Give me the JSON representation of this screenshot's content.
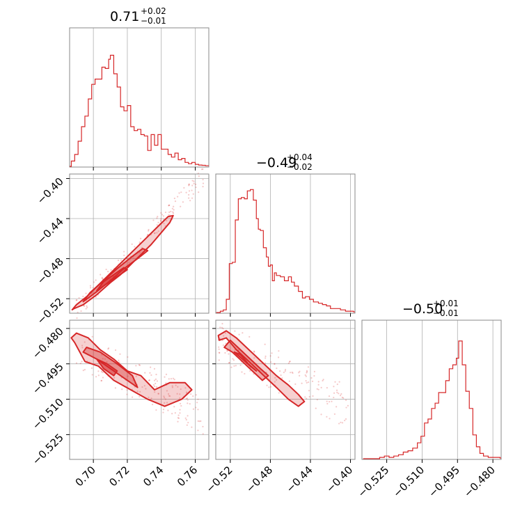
{
  "chart_data": {
    "type": "corner",
    "color": "#d62728",
    "grid": true,
    "parameters": [
      {
        "title_value": "0.71",
        "title_plus": "+0.02",
        "title_minus": "−0.01",
        "range": [
          0.686,
          0.768
        ],
        "ticks": [
          0.7,
          0.72,
          0.74,
          0.76
        ],
        "tick_labels": [
          "0.70",
          "0.72",
          "0.74",
          "0.76"
        ]
      },
      {
        "title_value": "−0.49",
        "title_plus": "+0.04",
        "title_minus": "−0.02",
        "range": [
          -0.5345,
          -0.3955
        ],
        "ticks": [
          -0.52,
          -0.48,
          -0.44,
          -0.4
        ],
        "tick_labels": [
          "−0.52",
          "−0.48",
          "−0.44",
          "−0.40"
        ]
      },
      {
        "title_value": "−0.50",
        "title_plus": "+0.01",
        "title_minus": "−0.01",
        "range": [
          -0.5355,
          -0.4765
        ],
        "ticks": [
          -0.525,
          -0.51,
          -0.495,
          -0.48
        ],
        "tick_labels": [
          "−0.525",
          "−0.510",
          "−0.495",
          "−0.480"
        ]
      }
    ],
    "hist_0": [
      [
        0.686,
        0.0
      ],
      [
        0.687,
        0.04
      ],
      [
        0.689,
        0.09
      ],
      [
        0.691,
        0.19
      ],
      [
        0.693,
        0.3
      ],
      [
        0.695,
        0.38
      ],
      [
        0.697,
        0.51
      ],
      [
        0.699,
        0.62
      ],
      [
        0.701,
        0.66
      ],
      [
        0.703,
        0.66
      ],
      [
        0.705,
        0.75
      ],
      [
        0.707,
        0.74
      ],
      [
        0.709,
        0.81
      ],
      [
        0.71,
        0.84
      ],
      [
        0.712,
        0.7
      ],
      [
        0.714,
        0.6
      ],
      [
        0.716,
        0.45
      ],
      [
        0.718,
        0.42
      ],
      [
        0.72,
        0.46
      ],
      [
        0.722,
        0.3
      ],
      [
        0.724,
        0.27
      ],
      [
        0.726,
        0.28
      ],
      [
        0.728,
        0.24
      ],
      [
        0.73,
        0.23
      ],
      [
        0.732,
        0.12
      ],
      [
        0.734,
        0.24
      ],
      [
        0.736,
        0.16
      ],
      [
        0.738,
        0.24
      ],
      [
        0.74,
        0.13
      ],
      [
        0.742,
        0.13
      ],
      [
        0.744,
        0.09
      ],
      [
        0.746,
        0.07
      ],
      [
        0.748,
        0.1
      ],
      [
        0.75,
        0.05
      ],
      [
        0.752,
        0.06
      ],
      [
        0.754,
        0.03
      ],
      [
        0.756,
        0.02
      ],
      [
        0.758,
        0.03
      ],
      [
        0.76,
        0.015
      ],
      [
        0.762,
        0.01
      ],
      [
        0.764,
        0.008
      ],
      [
        0.766,
        0.005
      ]
    ],
    "hist_1": [
      [
        -0.534,
        0.0
      ],
      [
        -0.53,
        0.01
      ],
      [
        -0.527,
        0.02
      ],
      [
        -0.524,
        0.1
      ],
      [
        -0.521,
        0.37
      ],
      [
        -0.518,
        0.38
      ],
      [
        -0.515,
        0.7
      ],
      [
        -0.512,
        0.86
      ],
      [
        -0.509,
        0.87
      ],
      [
        -0.506,
        0.86
      ],
      [
        -0.503,
        0.92
      ],
      [
        -0.5,
        0.93
      ],
      [
        -0.497,
        0.85
      ],
      [
        -0.494,
        0.71
      ],
      [
        -0.492,
        0.63
      ],
      [
        -0.49,
        0.62
      ],
      [
        -0.487,
        0.49
      ],
      [
        -0.484,
        0.42
      ],
      [
        -0.482,
        0.35
      ],
      [
        -0.48,
        0.36
      ],
      [
        -0.478,
        0.24
      ],
      [
        -0.476,
        0.3
      ],
      [
        -0.474,
        0.28
      ],
      [
        -0.47,
        0.27
      ],
      [
        -0.466,
        0.24
      ],
      [
        -0.462,
        0.27
      ],
      [
        -0.459,
        0.23
      ],
      [
        -0.456,
        0.2
      ],
      [
        -0.452,
        0.16
      ],
      [
        -0.448,
        0.11
      ],
      [
        -0.445,
        0.12
      ],
      [
        -0.441,
        0.1
      ],
      [
        -0.437,
        0.08
      ],
      [
        -0.432,
        0.07
      ],
      [
        -0.428,
        0.06
      ],
      [
        -0.424,
        0.05
      ],
      [
        -0.42,
        0.03
      ],
      [
        -0.415,
        0.03
      ],
      [
        -0.41,
        0.02
      ],
      [
        -0.405,
        0.01
      ],
      [
        -0.4,
        0.01
      ],
      [
        -0.397,
        0.005
      ]
    ],
    "hist_2": [
      [
        -0.535,
        0.0
      ],
      [
        -0.528,
        0.01
      ],
      [
        -0.526,
        0.02
      ],
      [
        -0.524,
        0.01
      ],
      [
        -0.522,
        0.02
      ],
      [
        -0.52,
        0.03
      ],
      [
        -0.518,
        0.05
      ],
      [
        -0.516,
        0.06
      ],
      [
        -0.514,
        0.08
      ],
      [
        -0.512,
        0.12
      ],
      [
        -0.5105,
        0.17
      ],
      [
        -0.509,
        0.27
      ],
      [
        -0.5075,
        0.3
      ],
      [
        -0.506,
        0.38
      ],
      [
        -0.5045,
        0.42
      ],
      [
        -0.503,
        0.5
      ],
      [
        -0.5015,
        0.5
      ],
      [
        -0.5,
        0.59
      ],
      [
        -0.4985,
        0.68
      ],
      [
        -0.497,
        0.71
      ],
      [
        -0.4955,
        0.76
      ],
      [
        -0.4945,
        0.89
      ],
      [
        -0.493,
        0.71
      ],
      [
        -0.4915,
        0.51
      ],
      [
        -0.49,
        0.38
      ],
      [
        -0.4885,
        0.18
      ],
      [
        -0.487,
        0.09
      ],
      [
        -0.4855,
        0.04
      ],
      [
        -0.484,
        0.02
      ],
      [
        -0.482,
        0.01
      ],
      [
        -0.479,
        0.01
      ],
      [
        -0.477,
        0.005
      ]
    ],
    "contours_10": [
      {
        "x": [
          0.6885,
          0.694,
          0.702,
          0.71,
          0.716,
          0.722,
          0.728,
          0.734,
          0.74,
          0.745,
          0.747,
          0.744,
          0.738,
          0.732,
          0.726,
          0.72,
          0.714,
          0.708,
          0.702,
          0.696,
          0.69,
          0.6875
        ],
        "y": [
          -0.53,
          -0.526,
          -0.516,
          -0.504,
          -0.496,
          -0.486,
          -0.476,
          -0.466,
          -0.454,
          -0.444,
          -0.437,
          -0.438,
          -0.448,
          -0.458,
          -0.468,
          -0.478,
          -0.488,
          -0.498,
          -0.508,
          -0.518,
          -0.526,
          -0.531
        ]
      },
      {
        "x": [
          0.694,
          0.702,
          0.71,
          0.718,
          0.726,
          0.732,
          0.729,
          0.722,
          0.714,
          0.706,
          0.698,
          0.694
        ],
        "y": [
          -0.523,
          -0.513,
          -0.502,
          -0.49,
          -0.48,
          -0.472,
          -0.47,
          -0.479,
          -0.49,
          -0.502,
          -0.514,
          -0.523
        ]
      },
      {
        "x": [
          0.702,
          0.708,
          0.714,
          0.72,
          0.718,
          0.712,
          0.706,
          0.702
        ],
        "y": [
          -0.512,
          -0.505,
          -0.498,
          -0.491,
          -0.489,
          -0.496,
          -0.503,
          -0.512
        ]
      }
    ],
    "contours_20": [
      {
        "x": [
          0.689,
          0.695,
          0.703,
          0.712,
          0.722,
          0.732,
          0.742,
          0.752,
          0.758,
          0.754,
          0.745,
          0.736,
          0.728,
          0.72,
          0.712,
          0.704,
          0.697,
          0.69,
          0.687
        ],
        "y": [
          -0.486,
          -0.494,
          -0.496,
          -0.502,
          -0.506,
          -0.51,
          -0.513,
          -0.51,
          -0.506,
          -0.503,
          -0.503,
          -0.506,
          -0.5,
          -0.498,
          -0.493,
          -0.489,
          -0.484,
          -0.482,
          -0.484
        ]
      },
      {
        "x": [
          0.694,
          0.702,
          0.712,
          0.72,
          0.726,
          0.723,
          0.714,
          0.704,
          0.696,
          0.694
        ],
        "y": [
          -0.49,
          -0.493,
          -0.498,
          -0.502,
          -0.505,
          -0.5,
          -0.495,
          -0.49,
          -0.488,
          -0.49
        ]
      },
      {
        "x": [
          0.702,
          0.708,
          0.714,
          0.712,
          0.706,
          0.702
        ],
        "y": [
          -0.493,
          -0.495,
          -0.498,
          -0.5,
          -0.497,
          -0.493
        ]
      }
    ],
    "contours_21": [
      {
        "x": [
          -0.531,
          -0.524,
          -0.514,
          -0.504,
          -0.494,
          -0.484,
          -0.474,
          -0.462,
          -0.452,
          -0.446,
          -0.452,
          -0.462,
          -0.474,
          -0.484,
          -0.494,
          -0.504,
          -0.514,
          -0.524,
          -0.532
        ],
        "y": [
          -0.485,
          -0.484,
          -0.489,
          -0.493,
          -0.497,
          -0.501,
          -0.505,
          -0.51,
          -0.513,
          -0.511,
          -0.508,
          -0.504,
          -0.5,
          -0.496,
          -0.492,
          -0.488,
          -0.484,
          -0.481,
          -0.483
        ]
      },
      {
        "x": [
          -0.526,
          -0.518,
          -0.508,
          -0.498,
          -0.488,
          -0.482,
          -0.49,
          -0.5,
          -0.51,
          -0.52,
          -0.526
        ],
        "y": [
          -0.488,
          -0.49,
          -0.494,
          -0.498,
          -0.502,
          -0.5,
          -0.497,
          -0.493,
          -0.489,
          -0.485,
          -0.488
        ]
      },
      {
        "x": [
          -0.516,
          -0.508,
          -0.5,
          -0.494,
          -0.502,
          -0.51,
          -0.516
        ],
        "y": [
          -0.49,
          -0.493,
          -0.496,
          -0.498,
          -0.495,
          -0.491,
          -0.49
        ]
      }
    ]
  }
}
